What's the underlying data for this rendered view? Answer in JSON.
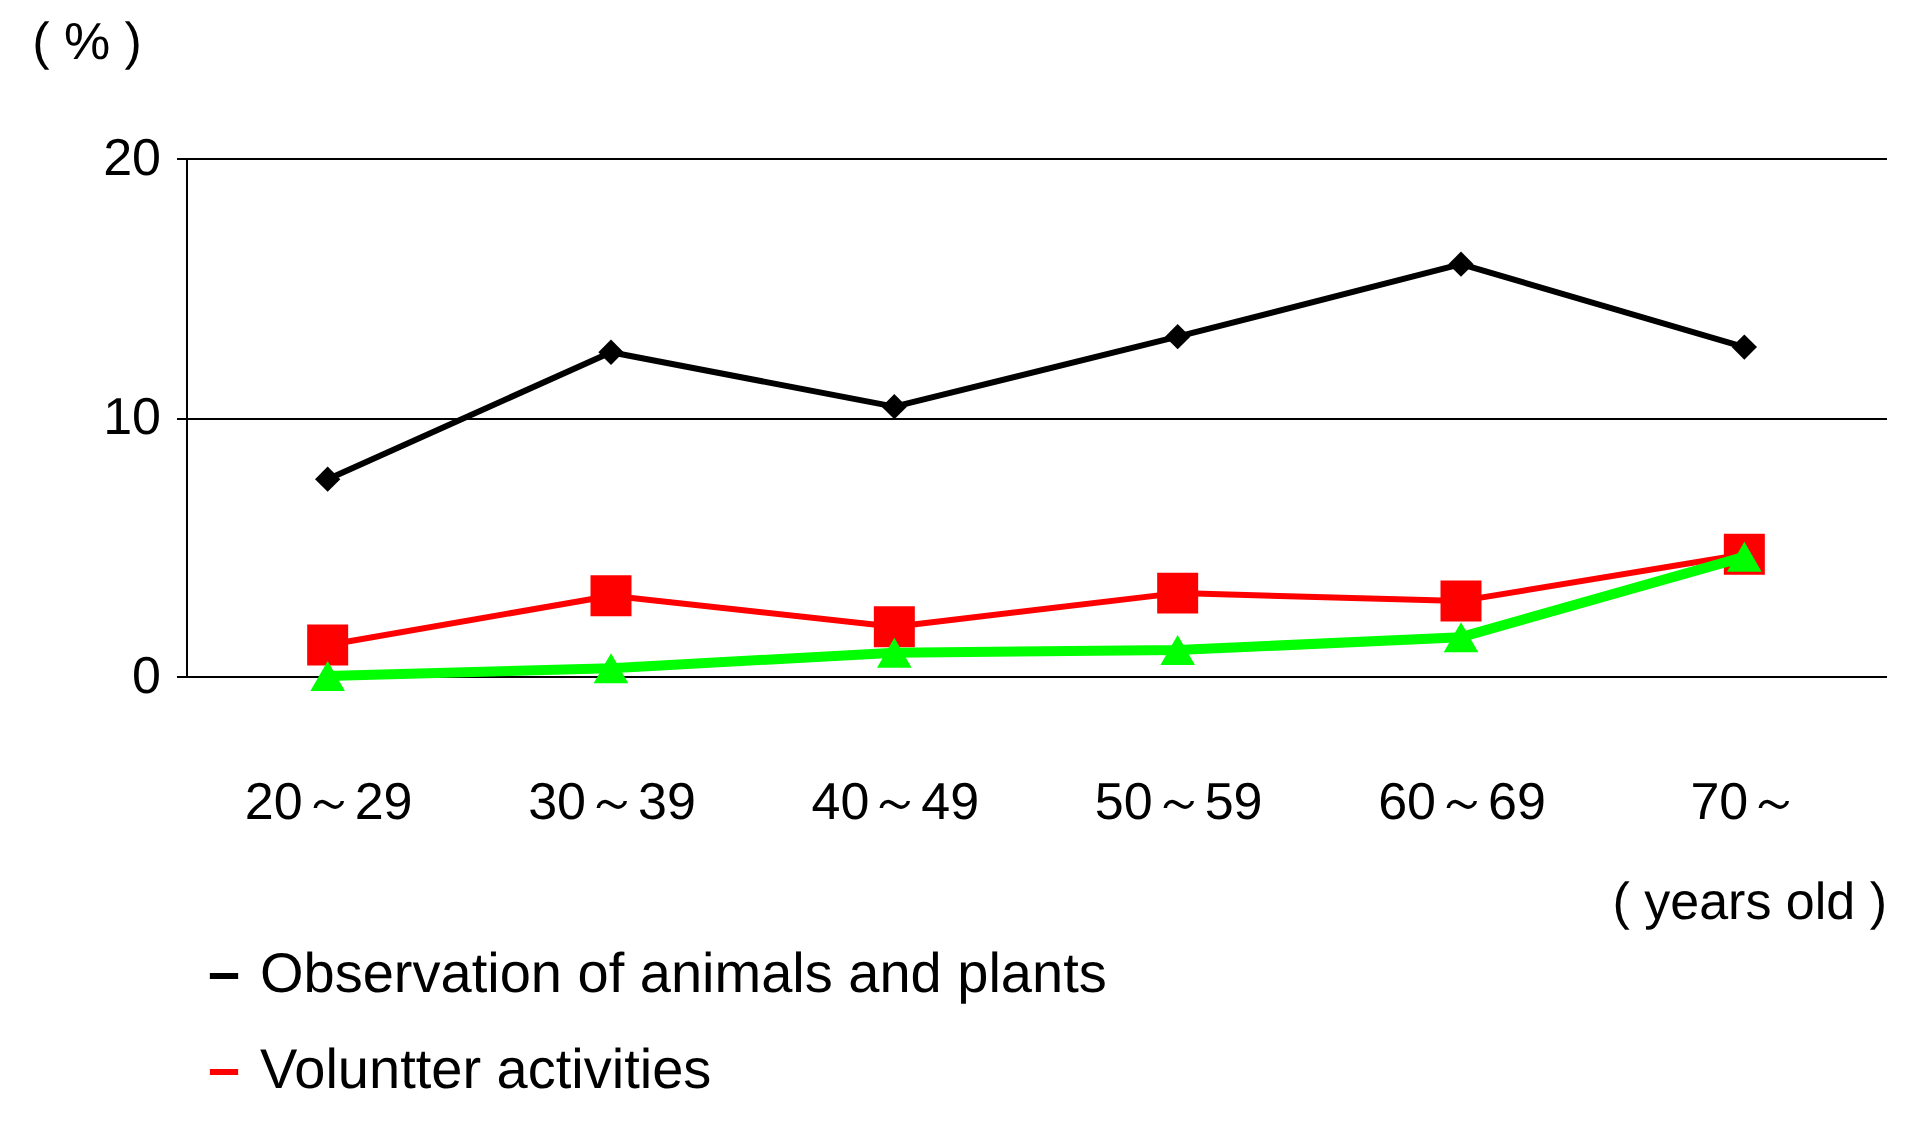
{
  "chart_data": {
    "type": "line",
    "ylabel": "( % )",
    "xlabel": "( years old )",
    "categories": [
      "20～29",
      "30～39",
      "40～49",
      "50～59",
      "60～69",
      "70～"
    ],
    "series": [
      {
        "name": "Observation of animals and plants",
        "color": "#000000",
        "marker": "diamond",
        "values": [
          7.6,
          12.5,
          10.4,
          13.1,
          15.9,
          12.7
        ]
      },
      {
        "name": "Voluntter activities",
        "color": "#ff0000",
        "marker": "square",
        "values": [
          1.2,
          3.1,
          1.9,
          3.2,
          2.9,
          4.7
        ]
      },
      {
        "color": "#00ff00",
        "marker": "triangle",
        "values": [
          0,
          0.3,
          0.9,
          1.0,
          1.5,
          4.6
        ]
      }
    ],
    "ylim": [
      0,
      20
    ],
    "yticks": [
      0,
      10,
      20
    ],
    "grid": "y",
    "legend": "bottom left"
  }
}
